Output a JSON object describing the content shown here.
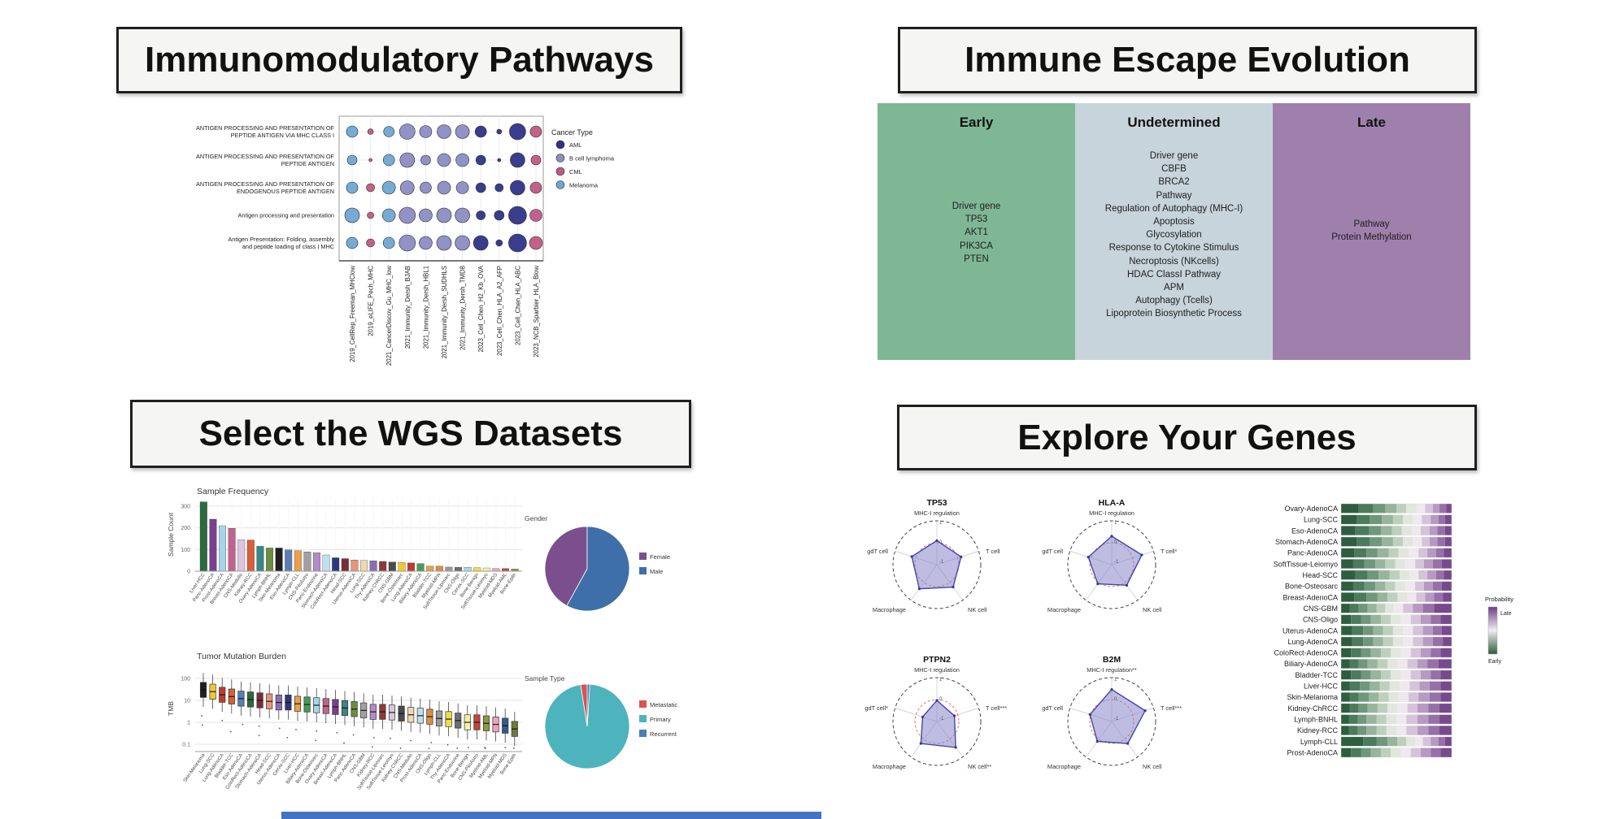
{
  "app": {
    "background": "#ffffff",
    "panel_buttons": [
      {
        "title": "Immunomodulatory Pathways"
      },
      {
        "title": "Immune Escape Evolution"
      },
      {
        "title": "Select the WGS Datasets"
      },
      {
        "title": "Explore Your Genes"
      }
    ]
  },
  "escape": {
    "panels": [
      {
        "header": "Early",
        "color": "#7fb795",
        "items": [
          "Driver gene",
          "TP53",
          "AKT1",
          "PIK3CA",
          "PTEN"
        ]
      },
      {
        "header": "Undetermined",
        "color": "#c7d4dc",
        "items": [
          "Driver gene",
          "CBFB",
          "BRCA2",
          "Pathway",
          "Regulation of Autophagy (MHC-I)",
          "Apoptosis",
          "Glycosylation",
          "Response to Cytokine Stimulus",
          "Necroptosis (NKcells)",
          "HDAC ClassI Pathway",
          "APM",
          "Autophagy (Tcells)",
          "Lipoprotein Biosynthetic Process"
        ]
      },
      {
        "header": "Late",
        "color": "#9f80ad",
        "items": [
          "Pathway",
          "Protein Methylation"
        ]
      }
    ]
  },
  "footer": {
    "color": "#4472c4"
  },
  "chart_data": [
    {
      "id": "immuno-dotplot",
      "type": "scatter",
      "title": "",
      "rows": [
        {
          "lines": [
            "ANTIGEN PROCESSING AND PRESENTATION OF",
            "PEPTIDE ANTIGEN VIA MHC CLASS I"
          ]
        },
        {
          "lines": [
            "ANTIGEN PROCESSING AND PRESENTATION OF",
            "PEPTIDE ANTIGEN"
          ]
        },
        {
          "lines": [
            "ANTIGEN PROCESSING AND PRESENTATION OF",
            "ENDOGENOUS PEPTIDE ANTIGEN"
          ]
        },
        {
          "lines": [
            "Antigen processing and presentation"
          ]
        },
        {
          "lines": [
            "Antigen Presentation: Folding, assembly",
            "and peptide loading of class I MHC"
          ]
        }
      ],
      "columns": [
        "2019_CellRep_Freeman_MHClow",
        "2019_eLIFE_Pech_MHC",
        "2021_CancerDiscov_Gu_MHC_low",
        "2021_Immunity_Dersh_BJAB",
        "2021_Immunity_Dersh_HBL1",
        "2021_Immunity_Dersh_SUDHLS",
        "2021_Immunity_Dersh_TMD8",
        "2023_Cell_Chen_H2_Kb_OVA",
        "2023_Cell_Chen_HLA_A2_AFP",
        "2023_Cell_Chen_HLA_ABC",
        "2023_NCB_Sparbier_HLA_Blow"
      ],
      "column_cancer": [
        "Melanoma",
        "CML",
        "Melanoma",
        "B cell lymphoma",
        "B cell lymphoma",
        "B cell lymphoma",
        "B cell lymphoma",
        "AML",
        "AML",
        "AML",
        "CML"
      ],
      "sizes": [
        [
          7,
          3.5,
          6.5,
          9.5,
          7.5,
          8.5,
          8.5,
          7,
          3,
          10,
          7
        ],
        [
          6,
          2,
          7,
          9,
          6,
          8,
          8,
          6,
          2,
          9,
          6
        ],
        [
          7,
          5,
          8,
          8.5,
          7,
          8,
          7.5,
          6,
          5,
          9,
          7
        ],
        [
          9,
          4,
          8,
          10,
          8,
          9,
          9,
          5.5,
          6,
          11,
          7.5
        ],
        [
          7,
          5,
          7,
          10,
          8,
          9,
          9,
          9,
          4,
          11,
          8
        ]
      ],
      "legend": {
        "title": "Cancer Type",
        "entries": [
          {
            "label": "AML",
            "color": "#2f3387"
          },
          {
            "label": "B cell lymphoma",
            "color": "#8d8cc3"
          },
          {
            "label": "CML",
            "color": "#bf5a83"
          },
          {
            "label": "Melanoma",
            "color": "#6ea7d3"
          }
        ]
      }
    },
    {
      "id": "sample-frequency",
      "type": "bar",
      "title": "Sample Frequency",
      "ylabel": "Sample Count",
      "yticks": [
        0,
        100,
        200,
        300
      ],
      "ylim": [
        0,
        330
      ],
      "categories": [
        "Liver-HCC",
        "Panc-AdenoCA",
        "Prost-AdenoCA",
        "Breast-AdenoCA",
        "CNS-Medullo",
        "Kidney-RCC",
        "Ovary-AdenoCA",
        "Lymph-BNHL",
        "Skin-Melanoma",
        "Eso-AdenoCA",
        "Lymph-CLL",
        "CNS-PiloAstro",
        "Panc-Endocrine",
        "Stomach-AdenoCA",
        "ColoRect-AdenoCA",
        "Head-SCC",
        "Uterus-AdenoCA",
        "Lung-SCC",
        "Thy-AdenoCA",
        "Kidney-ChRCC",
        "CNS-GBM",
        "Bone-Osteosarc",
        "Lung-AdenoCA",
        "Biliary-AdenoCA",
        "Bladder-TCC",
        "Myeloid-MPN",
        "SoftTissue-Liposarc",
        "CNS-Oligo",
        "Cervix-SCC",
        "Bone-Benign",
        "SoftTissue-Leiomyo",
        "Myeloid-MDS",
        "Myeloid-AML",
        "Bone-Epith"
      ],
      "values": [
        320,
        240,
        210,
        198,
        146,
        144,
        115,
        107,
        107,
        98,
        95,
        89,
        85,
        75,
        62,
        58,
        52,
        50,
        48,
        45,
        42,
        40,
        38,
        35,
        23,
        23,
        19,
        18,
        18,
        16,
        15,
        12,
        12,
        10
      ],
      "colors": [
        "#2d6a3f",
        "#7b3f8f",
        "#a8d4ea",
        "#c2638f",
        "#ddc5de",
        "#d95f3b",
        "#3b8686",
        "#6b8e3f",
        "#1f1f1f",
        "#5b7fb5",
        "#e8a04a",
        "#a0a0a0",
        "#b48cc4",
        "#bfe0ee",
        "#2b3a7d",
        "#7a2e3a",
        "#e8937c",
        "#eed9ae",
        "#8a6fb0",
        "#8f3a3a",
        "#4a4a4a",
        "#f0c832",
        "#c03a32",
        "#4a9a55",
        "#e8a04a",
        "#db8f3e",
        "#9a9a9a",
        "#6e6e6e",
        "#a8d8e8",
        "#f0e045",
        "#f5f0a8",
        "#f0a0c0",
        "#c24535",
        "#8a9a40"
      ]
    },
    {
      "id": "gender-pie",
      "type": "pie",
      "title": "Gender",
      "slices": [
        {
          "label": "Female",
          "value": 42,
          "color": "#7b4f8e"
        },
        {
          "label": "Male",
          "value": 58,
          "color": "#3e6fa8"
        }
      ]
    },
    {
      "id": "tmb-boxplot",
      "type": "boxplot",
      "title": "Tumor Mutation Burden",
      "ylabel": "TMB",
      "yticks": [
        "100",
        "10",
        "1",
        "0.1"
      ],
      "categories": [
        "Skin-Melanoma",
        "Lung-SCC",
        "Lung-AdenoCA",
        "Bladder-TCC",
        "Eso-AdenoCA",
        "ColoRect-AdenoCA",
        "Stomach-AdenoCA",
        "Head-SCC",
        "Uterus-AdenoCA",
        "Cervix-SCC",
        "Liver-HCC",
        "Biliary-AdenoCA",
        "Bone-Osteosarc",
        "Ovary-AdenoCA",
        "Breast-AdenoCA",
        "Lymph-BNHL",
        "Panc-AdenoCA",
        "CNS-GBM",
        "Kidney-RCC",
        "SoftTissue-Liposarc",
        "SoftTissue-Leiomyo",
        "Kidney-ChRCC",
        "CNS-Medullo",
        "Prost-AdenoCA",
        "CNS-Oligo",
        "Lymph-CLL",
        "Thy-AdenoCA",
        "Panc-Endocrine",
        "Bone-Benign",
        "CNS-PiloAstro",
        "Myeloid-AML",
        "Myeloid-MPN",
        "Myeloid-MDS",
        "Bone-Epith"
      ],
      "medians": [
        30,
        25,
        18,
        15,
        12,
        11,
        10,
        9,
        8,
        8,
        7,
        6.5,
        6,
        5.5,
        5,
        4.5,
        4,
        3.5,
        3,
        3,
        2.8,
        2.5,
        2.2,
        2,
        1.8,
        1.5,
        1.4,
        1.2,
        1,
        1,
        0.9,
        0.8,
        0.7,
        0.5
      ],
      "colors": [
        "#1f1f1f",
        "#f0c832",
        "#c03a32",
        "#d95f3b",
        "#5b7fb5",
        "#2d6a3f",
        "#7a2e3a",
        "#e8937c",
        "#8a6fb0",
        "#2b3a7d",
        "#e8a04a",
        "#4a9a55",
        "#a8d4ea",
        "#c2638f",
        "#7b3f8f",
        "#3b8686",
        "#6b8e3f",
        "#a0a0a0",
        "#b48cc4",
        "#8f3a3a",
        "#ddc5de",
        "#4a4a4a",
        "#eed9ae",
        "#bfe0ee",
        "#db8f3e",
        "#9a9a9a",
        "#f0e045",
        "#6e6e6e",
        "#f5f0a8",
        "#c24535",
        "#8a9a40",
        "#f0a0c0",
        "#2f5d8a",
        "#707a3a"
      ]
    },
    {
      "id": "sample-type-pie",
      "type": "pie",
      "title": "Sample Type",
      "slices": [
        {
          "label": "Metastatic",
          "value": 2.5,
          "color": "#d9534f"
        },
        {
          "label": "Primary",
          "value": 96.5,
          "color": "#4db3bc"
        },
        {
          "label": "Recurrent",
          "value": 1,
          "color": "#4a7fb5"
        }
      ]
    },
    {
      "id": "radar-tp53",
      "type": "radar",
      "title": "TP53",
      "axis_labels": [
        "MHC-I regulation",
        "T cell",
        "NK cell",
        "Macrophage",
        "gdT cell"
      ],
      "ticks": [
        "1",
        "0",
        "-1"
      ],
      "values": [
        0.55,
        0.58,
        0.63,
        0.68,
        0.6
      ]
    },
    {
      "id": "radar-hlaa",
      "type": "radar",
      "title": "HLA-A",
      "axis_labels": [
        "MHC-I regulation",
        "T cell*",
        "NK cell",
        "Macrophage",
        "gdT cell"
      ],
      "ticks": [
        "1",
        "0",
        "-1"
      ],
      "values": [
        0.65,
        0.72,
        0.58,
        0.54,
        0.56
      ]
    },
    {
      "id": "radar-ptpn2",
      "type": "radar",
      "title": "PTPN2",
      "axis_labels": [
        "MHC-I regulation",
        "T cell***",
        "NK cell**",
        "Macrophage",
        "gdT cell*"
      ],
      "ticks": [
        "1",
        "0",
        "-1"
      ],
      "values": [
        0.48,
        0.42,
        0.73,
        0.62,
        0.34
      ]
    },
    {
      "id": "radar-b2m",
      "type": "radar",
      "title": "B2M",
      "axis_labels": [
        "MHC-I regulation**",
        "T cell***",
        "NK cell",
        "Macrophage",
        "gdT cell"
      ],
      "ticks": [
        "1",
        "0",
        "-1"
      ],
      "values": [
        0.73,
        0.8,
        0.62,
        0.56,
        0.52
      ]
    },
    {
      "id": "probability-stack",
      "type": "stacked-bar",
      "palette": [
        "#2f5d3f",
        "#4b7a5c",
        "#6f977b",
        "#97b49c",
        "#bdd0bd",
        "#e2e6dd",
        "#efe9ef",
        "#d5c3da",
        "#b799c2",
        "#9770a8",
        "#774a8e"
      ],
      "legend": {
        "title": "Probability",
        "top": "Late",
        "bottom": "Early",
        "top_color": "#6d3d87",
        "bottom_color": "#2f5d3f"
      },
      "rows": [
        {
          "label": "Ovary-AdenoCA",
          "w": [
            16,
            13,
            11,
            10,
            9,
            9,
            8,
            7,
            6,
            6,
            5
          ]
        },
        {
          "label": "Lung-SCC",
          "w": [
            14,
            12,
            11,
            10,
            9,
            9,
            8,
            8,
            7,
            6,
            6
          ]
        },
        {
          "label": "Eso-AdenoCA",
          "w": [
            13,
            12,
            11,
            10,
            9,
            9,
            8,
            8,
            7,
            7,
            6
          ]
        },
        {
          "label": "Stomach-AdenoCA",
          "w": [
            14,
            12,
            11,
            10,
            9,
            9,
            8,
            7,
            7,
            7,
            6
          ]
        },
        {
          "label": "Panc-AdenoCA",
          "w": [
            12,
            11,
            10,
            10,
            9,
            9,
            9,
            8,
            8,
            7,
            7
          ]
        },
        {
          "label": "SoftTissue-Leiomyo",
          "w": [
            11,
            10,
            10,
            9,
            9,
            9,
            9,
            8,
            8,
            8,
            9
          ]
        },
        {
          "label": "Head-SCC",
          "w": [
            13,
            11,
            10,
            10,
            9,
            9,
            8,
            8,
            8,
            7,
            7
          ]
        },
        {
          "label": "Bone-Osteosarc",
          "w": [
            11,
            10,
            10,
            9,
            9,
            9,
            9,
            8,
            8,
            8,
            9
          ]
        },
        {
          "label": "Breast-AdenoCA",
          "w": [
            12,
            11,
            10,
            9,
            9,
            9,
            8,
            8,
            8,
            8,
            8
          ]
        },
        {
          "label": "CNS-GBM",
          "w": [
            8,
            8,
            8,
            8,
            8,
            8,
            8,
            9,
            9,
            10,
            16
          ]
        },
        {
          "label": "CNS-Oligo",
          "w": [
            9,
            9,
            9,
            9,
            9,
            9,
            9,
            9,
            9,
            9,
            10
          ]
        },
        {
          "label": "Uterus-AdenoCA",
          "w": [
            10,
            10,
            9,
            9,
            9,
            9,
            9,
            9,
            9,
            8,
            9
          ]
        },
        {
          "label": "Lung-AdenoCA",
          "w": [
            10,
            10,
            9,
            9,
            9,
            9,
            9,
            9,
            9,
            9,
            8
          ]
        },
        {
          "label": "ColoRect-AdenoCA",
          "w": [
            9,
            9,
            9,
            9,
            9,
            9,
            9,
            9,
            9,
            9,
            10
          ]
        },
        {
          "label": "Biliary-AdenoCA",
          "w": [
            8,
            8,
            8,
            9,
            9,
            9,
            9,
            9,
            9,
            10,
            12
          ]
        },
        {
          "label": "Bladder-TCC",
          "w": [
            9,
            9,
            9,
            9,
            9,
            9,
            9,
            9,
            9,
            9,
            10
          ]
        },
        {
          "label": "Liver-HCC",
          "w": [
            8,
            9,
            9,
            9,
            9,
            9,
            9,
            9,
            9,
            10,
            10
          ]
        },
        {
          "label": "Skin-Melanoma",
          "w": [
            8,
            8,
            9,
            9,
            9,
            9,
            9,
            9,
            10,
            10,
            10
          ]
        },
        {
          "label": "Kidney-ChRCC",
          "w": [
            8,
            8,
            8,
            9,
            9,
            9,
            9,
            9,
            10,
            10,
            11
          ]
        },
        {
          "label": "Lymph-BNHL",
          "w": [
            7,
            8,
            8,
            9,
            9,
            9,
            9,
            10,
            10,
            10,
            11
          ]
        },
        {
          "label": "Kidney-RCC",
          "w": [
            7,
            8,
            8,
            9,
            9,
            9,
            9,
            10,
            10,
            10,
            11
          ]
        },
        {
          "label": "Lymph-CLL",
          "w": [
            20,
            12,
            10,
            9,
            8,
            8,
            7,
            7,
            7,
            6,
            6
          ]
        },
        {
          "label": "Prost-AdenoCA",
          "w": [
            9,
            9,
            9,
            9,
            9,
            9,
            9,
            9,
            9,
            9,
            10
          ]
        }
      ]
    }
  ]
}
